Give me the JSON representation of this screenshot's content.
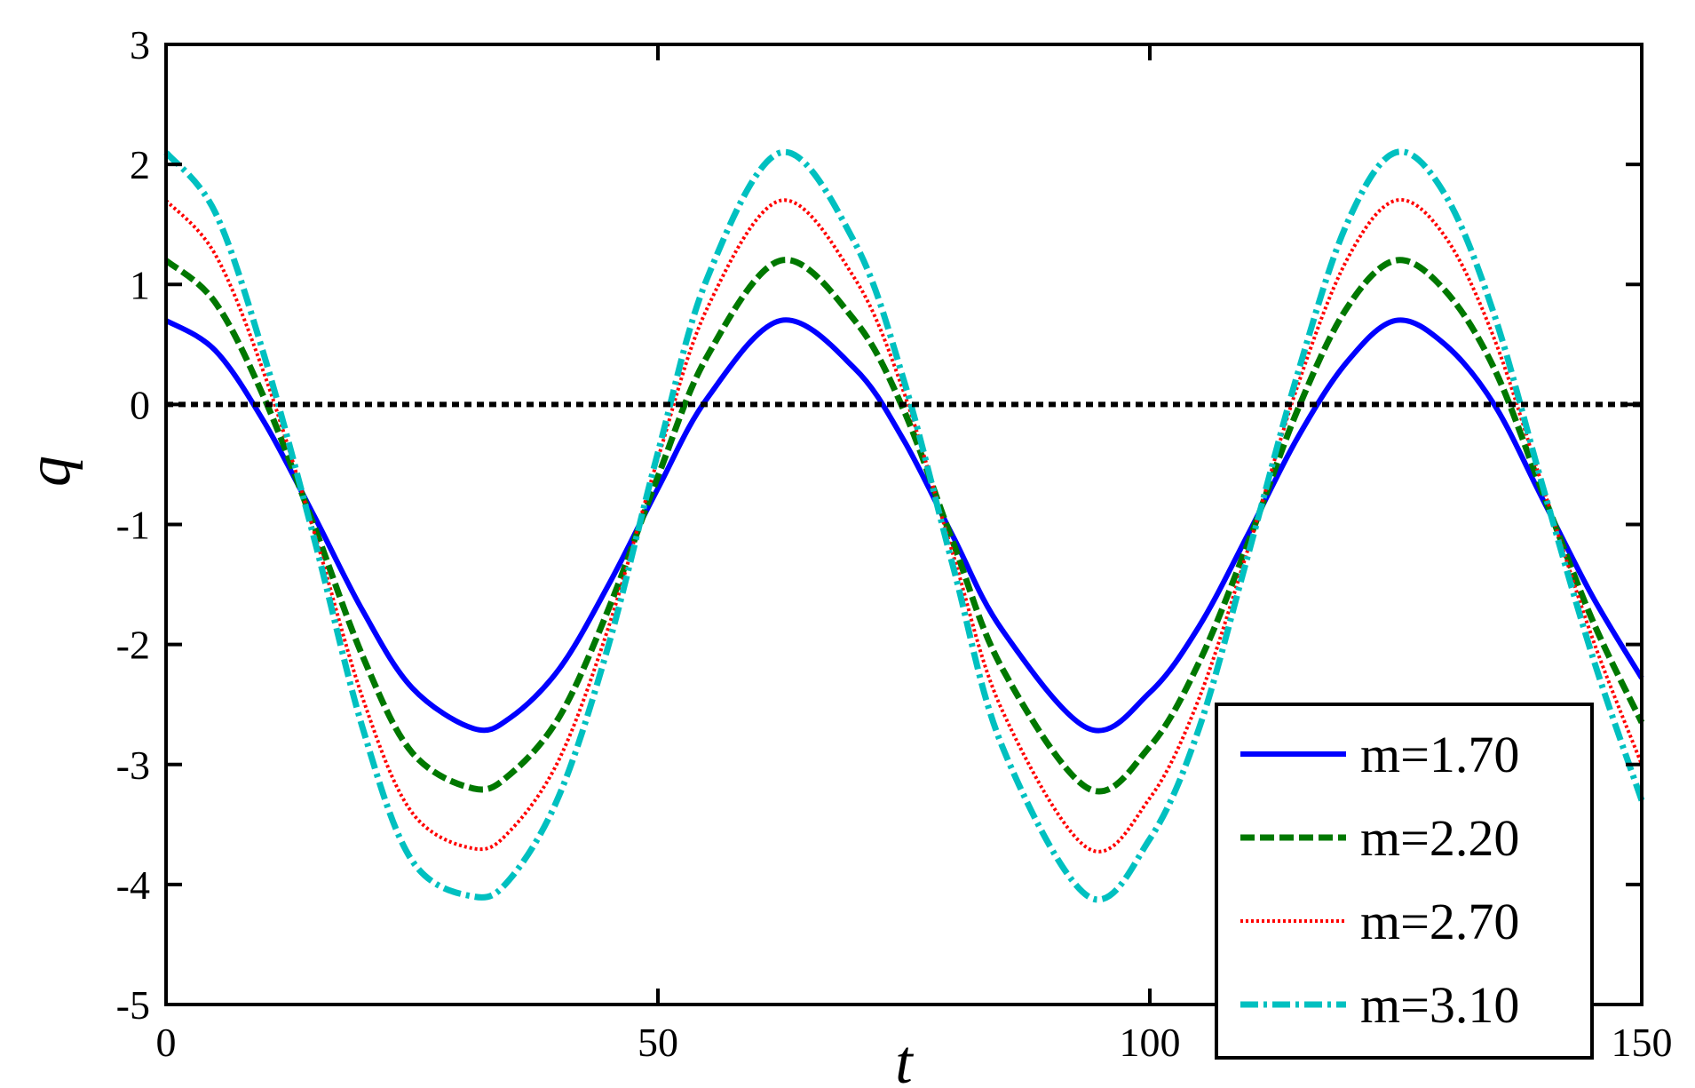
{
  "chart_data": {
    "type": "line",
    "xlabel": "t",
    "ylabel": "q",
    "xlim": [
      0,
      150
    ],
    "ylim": [
      -5,
      3
    ],
    "x_ticks": [
      0,
      50,
      100,
      150
    ],
    "y_ticks": [
      3,
      2,
      1,
      0,
      -1,
      -2,
      -3,
      -4,
      -5
    ],
    "x_tick_labels": [
      "0",
      "50",
      "100",
      "150"
    ],
    "y_tick_labels": [
      "3",
      "2",
      "1",
      "0",
      "-1",
      "-2",
      "-3",
      "-4",
      "-5"
    ],
    "grid": false,
    "legend_position": "bottom-right",
    "reference_line": {
      "y": 0,
      "style": "dotted",
      "color": "#000000"
    },
    "series": [
      {
        "name": "m=1.70",
        "color": "#0000ff",
        "style": "solid",
        "x": [
          0,
          5,
          10,
          15,
          20,
          25,
          31.25,
          35,
          40,
          45,
          50,
          55,
          62.5,
          70,
          75,
          80,
          85,
          93.75,
          100,
          105,
          110,
          115,
          120,
          125,
          130,
          135,
          140,
          145,
          150
        ],
        "y": [
          0.7,
          0.45,
          -0.15,
          -0.92,
          -1.72,
          -2.36,
          -2.7,
          -2.61,
          -2.2,
          -1.5,
          -0.7,
          0.05,
          0.7,
          0.3,
          -0.3,
          -1.1,
          -1.88,
          -2.7,
          -2.4,
          -1.85,
          -1.08,
          -0.28,
          0.35,
          0.7,
          0.5,
          0.0,
          -0.8,
          -1.6,
          -2.28
        ]
      },
      {
        "name": "m=2.20",
        "color": "#007800",
        "style": "dashed",
        "x": [
          0,
          5,
          10,
          15,
          20,
          25,
          31.25,
          35,
          40,
          45,
          50,
          55,
          62.5,
          70,
          75,
          80,
          85,
          93.75,
          100,
          105,
          110,
          115,
          120,
          125,
          130,
          135,
          140,
          145,
          150
        ],
        "y": [
          1.2,
          0.85,
          0.05,
          -1.0,
          -2.1,
          -2.9,
          -3.2,
          -3.08,
          -2.6,
          -1.7,
          -0.6,
          0.4,
          1.2,
          0.7,
          -0.05,
          -1.15,
          -2.2,
          -3.2,
          -2.85,
          -2.15,
          -1.15,
          -0.05,
          0.8,
          1.2,
          0.95,
          0.3,
          -0.75,
          -1.8,
          -2.65
        ]
      },
      {
        "name": "m=2.70",
        "color": "#ff0000",
        "style": "dotted",
        "x": [
          0,
          5,
          10,
          15,
          20,
          25,
          31.25,
          35,
          40,
          45,
          50,
          55,
          62.5,
          70,
          75,
          80,
          85,
          93.75,
          100,
          105,
          110,
          115,
          120,
          125,
          130,
          135,
          140,
          145,
          150
        ],
        "y": [
          1.7,
          1.25,
          0.25,
          -1.05,
          -2.45,
          -3.4,
          -3.7,
          -3.55,
          -2.95,
          -1.85,
          -0.45,
          0.8,
          1.7,
          1.05,
          0.1,
          -1.25,
          -2.55,
          -3.7,
          -3.28,
          -2.45,
          -1.2,
          0.15,
          1.2,
          1.7,
          1.4,
          0.55,
          -0.7,
          -1.95,
          -3.0
        ]
      },
      {
        "name": "m=3.10",
        "color": "#00c0c0",
        "style": "dashdot",
        "x": [
          0,
          5,
          10,
          15,
          20,
          25,
          31.25,
          35,
          40,
          45,
          50,
          55,
          62.5,
          70,
          75,
          80,
          85,
          93.75,
          100,
          105,
          110,
          115,
          120,
          125,
          130,
          135,
          140,
          145,
          150
        ],
        "y": [
          2.1,
          1.6,
          0.4,
          -1.1,
          -2.7,
          -3.8,
          -4.1,
          -3.95,
          -3.25,
          -2.0,
          -0.4,
          1.05,
          2.1,
          1.35,
          0.2,
          -1.35,
          -2.85,
          -4.1,
          -3.62,
          -2.7,
          -1.25,
          0.25,
          1.5,
          2.1,
          1.75,
          0.75,
          -0.7,
          -2.1,
          -3.3
        ]
      }
    ]
  }
}
